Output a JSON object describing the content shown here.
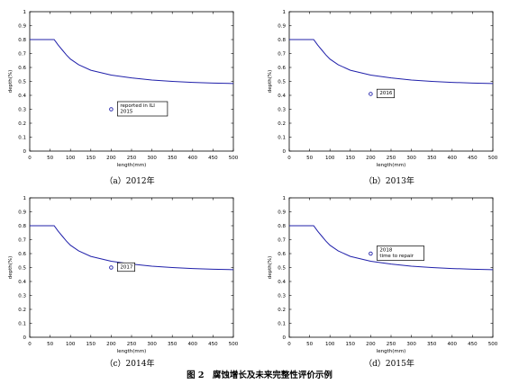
{
  "figure": {
    "number": "图 2",
    "caption": "腐蚀增长及未来完整性评价示例"
  },
  "colors": {
    "curve": "#2020aa",
    "marker": "#2020aa",
    "axis": "#000000"
  },
  "chart_data": [
    {
      "type": "line",
      "caption": "（a）2012年",
      "xlabel": "length(mm)",
      "ylabel": "depth(%)",
      "xlim": [
        0,
        500
      ],
      "ylim": [
        0,
        1
      ],
      "xticks": [
        0,
        50,
        100,
        150,
        200,
        250,
        300,
        350,
        400,
        450,
        500
      ],
      "yticks": [
        0,
        0.1,
        0.2,
        0.3,
        0.4,
        0.5,
        0.6,
        0.7,
        0.8,
        0.9,
        1
      ],
      "series": [
        {
          "name": "",
          "x": [
            0,
            30,
            60,
            65,
            70,
            80,
            90,
            100,
            120,
            150,
            200,
            250,
            300,
            350,
            400,
            450,
            500
          ],
          "y": [
            0.8,
            0.8,
            0.8,
            0.78,
            0.76,
            0.725,
            0.69,
            0.66,
            0.62,
            0.58,
            0.545,
            0.525,
            0.51,
            0.5,
            0.493,
            0.488,
            0.485
          ]
        }
      ],
      "point": {
        "x": 200,
        "y": 0.3
      },
      "annotation": [
        "reported in ILI",
        "2015"
      ]
    },
    {
      "type": "line",
      "caption": "（b）2013年",
      "xlabel": "length(mm)",
      "ylabel": "depth(%)",
      "xlim": [
        0,
        500
      ],
      "ylim": [
        0,
        1
      ],
      "xticks": [
        0,
        50,
        100,
        150,
        200,
        250,
        300,
        350,
        400,
        450,
        500
      ],
      "yticks": [
        0,
        0.1,
        0.2,
        0.3,
        0.4,
        0.5,
        0.6,
        0.7,
        0.8,
        0.9,
        1
      ],
      "series": [
        {
          "name": "",
          "x": [
            0,
            30,
            60,
            65,
            70,
            80,
            90,
            100,
            120,
            150,
            200,
            250,
            300,
            350,
            400,
            450,
            500
          ],
          "y": [
            0.8,
            0.8,
            0.8,
            0.78,
            0.76,
            0.725,
            0.69,
            0.66,
            0.62,
            0.58,
            0.545,
            0.525,
            0.51,
            0.5,
            0.493,
            0.488,
            0.485
          ]
        }
      ],
      "point": {
        "x": 200,
        "y": 0.41
      },
      "annotation": [
        "2016"
      ]
    },
    {
      "type": "line",
      "caption": "（c）2014年",
      "xlabel": "length(mm)",
      "ylabel": "depth(%)",
      "xlim": [
        0,
        500
      ],
      "ylim": [
        0,
        1
      ],
      "xticks": [
        0,
        50,
        100,
        150,
        200,
        250,
        300,
        350,
        400,
        450,
        500
      ],
      "yticks": [
        0,
        0.1,
        0.2,
        0.3,
        0.4,
        0.5,
        0.6,
        0.7,
        0.8,
        0.9,
        1
      ],
      "series": [
        {
          "name": "",
          "x": [
            0,
            30,
            60,
            65,
            70,
            80,
            90,
            100,
            120,
            150,
            200,
            250,
            300,
            350,
            400,
            450,
            500
          ],
          "y": [
            0.8,
            0.8,
            0.8,
            0.78,
            0.76,
            0.725,
            0.69,
            0.66,
            0.62,
            0.58,
            0.545,
            0.525,
            0.51,
            0.5,
            0.493,
            0.488,
            0.485
          ]
        }
      ],
      "point": {
        "x": 200,
        "y": 0.5
      },
      "annotation": [
        "2017"
      ]
    },
    {
      "type": "line",
      "caption": "（d）2015年",
      "xlabel": "length(mm)",
      "ylabel": "depth(%)",
      "xlim": [
        0,
        500
      ],
      "ylim": [
        0,
        1
      ],
      "xticks": [
        0,
        50,
        100,
        150,
        200,
        250,
        300,
        350,
        400,
        450,
        500
      ],
      "yticks": [
        0,
        0.1,
        0.2,
        0.3,
        0.4,
        0.5,
        0.6,
        0.7,
        0.8,
        0.9,
        1
      ],
      "series": [
        {
          "name": "",
          "x": [
            0,
            30,
            60,
            65,
            70,
            80,
            90,
            100,
            120,
            150,
            200,
            250,
            300,
            350,
            400,
            450,
            500
          ],
          "y": [
            0.8,
            0.8,
            0.8,
            0.78,
            0.76,
            0.725,
            0.69,
            0.66,
            0.62,
            0.58,
            0.545,
            0.525,
            0.51,
            0.5,
            0.493,
            0.488,
            0.485
          ]
        }
      ],
      "point": {
        "x": 200,
        "y": 0.6
      },
      "annotation": [
        "2018",
        "time to repair"
      ]
    }
  ]
}
